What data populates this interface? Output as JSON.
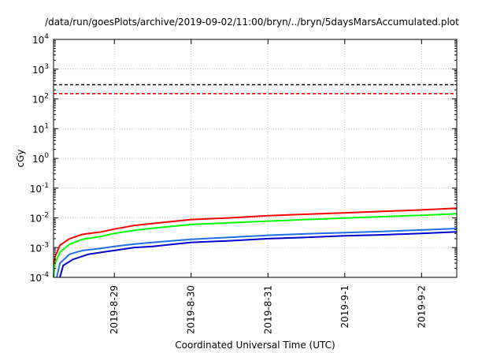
{
  "chart_data": {
    "type": "line",
    "title": "/data/run/goesPlots/archive/2019-09-02/11:00/bryn/../bryn/5daysMarsAccumulated.plot",
    "xlabel": "Coordinated Universal Time (UTC)",
    "ylabel": "cGy",
    "y_scale": "log",
    "ylim": [
      0.0001,
      10000
    ],
    "xlim": [
      "2019-08-28 05:00",
      "2019-09-02 11:00"
    ],
    "x_tick_labels": [
      "2019-8-29",
      "2019-8-30",
      "2019-8-31",
      "2019-9-1",
      "2019-9-2"
    ],
    "y_tick_labels": [
      {
        "base": "10",
        "exp": "-4"
      },
      {
        "base": "10",
        "exp": "-3"
      },
      {
        "base": "10",
        "exp": "-2"
      },
      {
        "base": "10",
        "exp": "-1"
      },
      {
        "base": "10",
        "exp": "0"
      },
      {
        "base": "10",
        "exp": "1"
      },
      {
        "base": "10",
        "exp": "2"
      },
      {
        "base": "10",
        "exp": "3"
      },
      {
        "base": "10",
        "exp": "4"
      }
    ],
    "grid": true,
    "reference_lines": [
      {
        "value": 300,
        "color": "#000000",
        "style": "dashed"
      },
      {
        "value": 150,
        "color": "#ff0000",
        "style": "dashed"
      }
    ],
    "series": [
      {
        "color": "#ff0000",
        "points": [
          [
            "2019-08-28 05:00",
            0.0001
          ],
          [
            "2019-08-28 05:30",
            0.0005
          ],
          [
            "2019-08-28 07:00",
            0.0012
          ],
          [
            "2019-08-28 10:00",
            0.002
          ],
          [
            "2019-08-28 14:00",
            0.0028
          ],
          [
            "2019-08-28 20:00",
            0.0034
          ],
          [
            "2019-08-29 00:00",
            0.0042
          ],
          [
            "2019-08-29 06:00",
            0.0055
          ],
          [
            "2019-08-29 12:00",
            0.0065
          ],
          [
            "2019-08-30 00:00",
            0.0088
          ],
          [
            "2019-08-30 12:00",
            0.01
          ],
          [
            "2019-08-31 00:00",
            0.0118
          ],
          [
            "2019-08-31 12:00",
            0.0132
          ],
          [
            "2019-09-01 00:00",
            0.0148
          ],
          [
            "2019-09-01 12:00",
            0.0165
          ],
          [
            "2019-09-02 00:00",
            0.0185
          ],
          [
            "2019-09-02 11:00",
            0.021
          ]
        ]
      },
      {
        "color": "#00ff00",
        "points": [
          [
            "2019-08-28 05:00",
            0.0001
          ],
          [
            "2019-08-28 05:30",
            0.0003
          ],
          [
            "2019-08-28 07:00",
            0.0007
          ],
          [
            "2019-08-28 10:00",
            0.0013
          ],
          [
            "2019-08-28 14:00",
            0.0019
          ],
          [
            "2019-08-28 20:00",
            0.0024
          ],
          [
            "2019-08-29 00:00",
            0.003
          ],
          [
            "2019-08-29 06:00",
            0.0038
          ],
          [
            "2019-08-29 12:00",
            0.0045
          ],
          [
            "2019-08-30 00:00",
            0.006
          ],
          [
            "2019-08-30 12:00",
            0.0068
          ],
          [
            "2019-08-31 00:00",
            0.0078
          ],
          [
            "2019-08-31 12:00",
            0.0088
          ],
          [
            "2019-09-01 00:00",
            0.0098
          ],
          [
            "2019-09-01 12:00",
            0.011
          ],
          [
            "2019-09-02 00:00",
            0.0122
          ],
          [
            "2019-09-02 11:00",
            0.0138
          ]
        ]
      },
      {
        "color": "#1e6fe8",
        "points": [
          [
            "2019-08-28 06:00",
            0.0001
          ],
          [
            "2019-08-28 07:00",
            0.0003
          ],
          [
            "2019-08-28 10:00",
            0.0006
          ],
          [
            "2019-08-28 14:00",
            0.0008
          ],
          [
            "2019-08-28 20:00",
            0.00095
          ],
          [
            "2019-08-29 00:00",
            0.0011
          ],
          [
            "2019-08-29 06:00",
            0.0013
          ],
          [
            "2019-08-29 12:00",
            0.0015
          ],
          [
            "2019-08-30 00:00",
            0.0019
          ],
          [
            "2019-08-30 12:00",
            0.0022
          ],
          [
            "2019-08-31 00:00",
            0.0026
          ],
          [
            "2019-08-31 12:00",
            0.0029
          ],
          [
            "2019-09-01 00:00",
            0.0032
          ],
          [
            "2019-09-01 12:00",
            0.0035
          ],
          [
            "2019-09-02 00:00",
            0.0039
          ],
          [
            "2019-09-02 11:00",
            0.0044
          ]
        ]
      },
      {
        "color": "#0000cd",
        "points": [
          [
            "2019-08-28 07:00",
            0.0001
          ],
          [
            "2019-08-28 08:00",
            0.00025
          ],
          [
            "2019-08-28 11:00",
            0.0004
          ],
          [
            "2019-08-28 16:00",
            0.0006
          ],
          [
            "2019-08-28 22:00",
            0.00075
          ],
          [
            "2019-08-29 00:00",
            0.0008
          ],
          [
            "2019-08-29 06:00",
            0.001
          ],
          [
            "2019-08-29 12:00",
            0.0011
          ],
          [
            "2019-08-30 00:00",
            0.0015
          ],
          [
            "2019-08-30 12:00",
            0.0017
          ],
          [
            "2019-08-31 00:00",
            0.002
          ],
          [
            "2019-08-31 12:00",
            0.0022
          ],
          [
            "2019-09-01 00:00",
            0.0025
          ],
          [
            "2019-09-01 12:00",
            0.0027
          ],
          [
            "2019-09-02 00:00",
            0.003
          ],
          [
            "2019-09-02 11:00",
            0.0034
          ]
        ]
      }
    ]
  }
}
